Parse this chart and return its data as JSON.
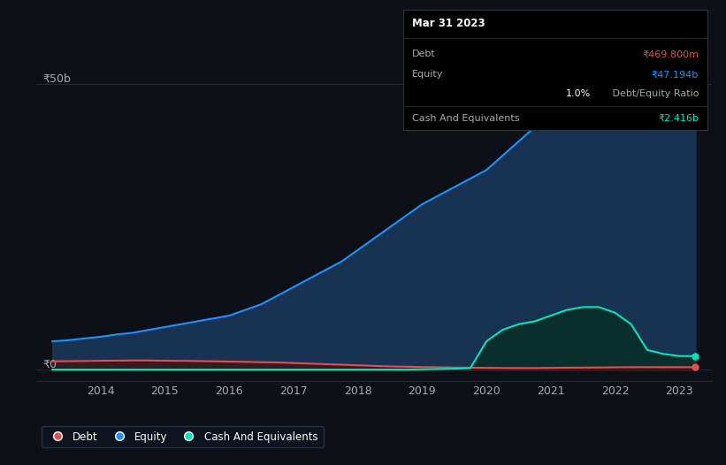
{
  "background_color": "#0d1117",
  "plot_bg_color": "#0d1117",
  "grid_color": "#1e2a3a",
  "ylabel_50b": "₹50b",
  "ylabel_0": "₹0",
  "xlabel_ticks": [
    "2014",
    "2015",
    "2016",
    "2017",
    "2018",
    "2019",
    "2020",
    "2021",
    "2022",
    "2023"
  ],
  "equity_color": "#1e90ff",
  "equity_fill": "#1a3a5c",
  "debt_color": "#e05050",
  "debt_fill": "#3a1a1a",
  "cash_color": "#00e5c0",
  "cash_fill": "#0a2e2a",
  "legend_bg": "#0d1520",
  "legend_border": "#2a3a4a",
  "tooltip_bg": "#000000",
  "tooltip_border": "#333333",
  "x_years": [
    2013.25,
    2013.5,
    2013.75,
    2014.0,
    2014.25,
    2014.5,
    2014.75,
    2015.0,
    2015.25,
    2015.5,
    2015.75,
    2016.0,
    2016.25,
    2016.5,
    2016.75,
    2017.0,
    2017.25,
    2017.5,
    2017.75,
    2018.0,
    2018.25,
    2018.5,
    2018.75,
    2019.0,
    2019.25,
    2019.5,
    2019.75,
    2020.0,
    2020.25,
    2020.5,
    2020.75,
    2021.0,
    2021.25,
    2021.5,
    2021.75,
    2022.0,
    2022.25,
    2022.5,
    2022.75,
    2023.0,
    2023.25
  ],
  "equity_values": [
    5.0,
    5.2,
    5.5,
    5.8,
    6.2,
    6.5,
    7.0,
    7.5,
    8.0,
    8.5,
    9.0,
    9.5,
    10.5,
    11.5,
    13.0,
    14.5,
    16.0,
    17.5,
    19.0,
    21.0,
    23.0,
    25.0,
    27.0,
    29.0,
    30.5,
    32.0,
    33.5,
    35.0,
    37.5,
    40.0,
    42.5,
    44.0,
    46.0,
    47.5,
    48.5,
    49.5,
    49.8,
    50.2,
    50.8,
    47.194,
    47.194
  ],
  "debt_values": [
    1.5,
    1.52,
    1.55,
    1.6,
    1.62,
    1.65,
    1.65,
    1.6,
    1.58,
    1.55,
    1.5,
    1.45,
    1.4,
    1.35,
    1.3,
    1.2,
    1.1,
    1.0,
    0.9,
    0.8,
    0.7,
    0.6,
    0.55,
    0.5,
    0.45,
    0.4,
    0.38,
    0.35,
    0.33,
    0.32,
    0.32,
    0.35,
    0.38,
    0.4,
    0.42,
    0.45,
    0.47,
    0.48,
    0.47,
    0.4698,
    0.4698
  ],
  "cash_values": [
    0.05,
    0.05,
    0.05,
    0.05,
    0.05,
    0.05,
    0.05,
    0.05,
    0.05,
    0.05,
    0.05,
    0.05,
    0.05,
    0.05,
    0.05,
    0.05,
    0.05,
    0.05,
    0.05,
    0.05,
    0.05,
    0.05,
    0.05,
    0.1,
    0.15,
    0.2,
    0.3,
    5.0,
    7.0,
    8.0,
    8.5,
    9.5,
    10.5,
    11.0,
    11.0,
    10.0,
    8.0,
    3.5,
    2.8,
    2.416,
    2.416
  ],
  "ylim": [
    -2,
    55
  ],
  "xlim": [
    2013.0,
    2023.5
  ],
  "tooltip": {
    "date": "Mar 31 2023",
    "debt_label": "Debt",
    "debt_value": "₹469.800m",
    "equity_label": "Equity",
    "equity_value": "₹47.194b",
    "ratio_value": "1.0%",
    "ratio_label": " Debt/Equity Ratio",
    "cash_label": "Cash And Equivalents",
    "cash_value": "₹2.416b"
  }
}
